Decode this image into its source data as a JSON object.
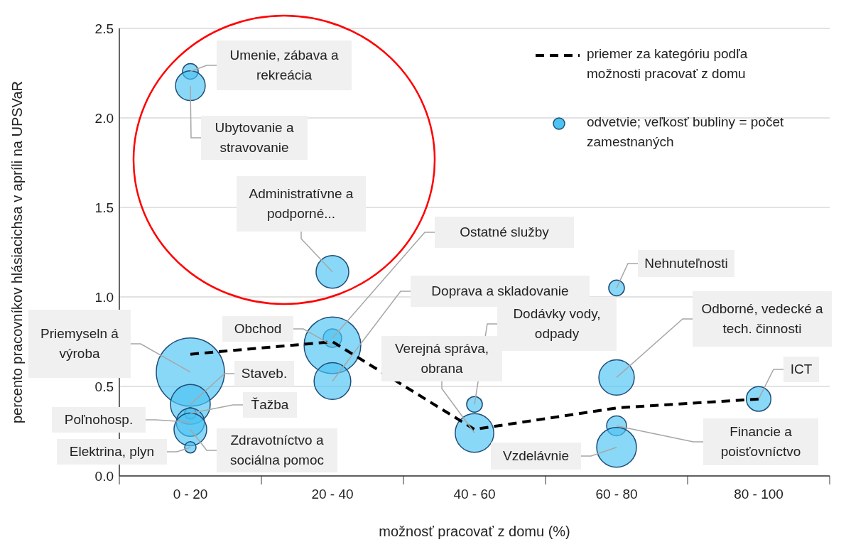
{
  "chart_data": {
    "type": "bubble",
    "xlabel": "možnosť pracovať z domu (%)",
    "ylabel": "percento pracovníkov hlásiacichsa v apríli na UPSVaR",
    "categories": [
      "0 - 20",
      "20 - 40",
      "40 - 60",
      "60 - 80",
      "80 - 100"
    ],
    "ylim": [
      0,
      2.5
    ],
    "yticks": [
      {
        "value": 0,
        "label": "0.0"
      },
      0.5,
      {
        "value": 1,
        "label": "1.0"
      },
      1.5,
      {
        "value": 2,
        "label": "2.0"
      },
      2.5
    ],
    "grid": "y",
    "legend": "top right",
    "line_style": "dashed",
    "series": [
      {
        "name": "priemer za kategóriu podľa možnosti pracovať z domu",
        "type": "line",
        "color": "#000000",
        "values": [
          0.68,
          0.75,
          0.26,
          0.38,
          0.43
        ]
      },
      {
        "name": "odvetvie; veľkosť bubliny = počet zamestnaných",
        "type": "bubble",
        "color": "#4cc3f2",
        "x": [
          "0 - 20",
          "0 - 20",
          "20 - 40",
          "20 - 40",
          "20 - 40",
          "20 - 40",
          "0 - 20",
          "0 - 20",
          "0 - 20",
          "0 - 20",
          "0 - 20",
          "0 - 20",
          "40 - 60",
          "40 - 60",
          "60 - 80",
          "60 - 80",
          "80 - 100",
          "60 - 80",
          "60 - 80"
        ],
        "values": [
          2.26,
          2.18,
          1.14,
          0.77,
          0.73,
          0.53,
          0.58,
          0.4,
          0.35,
          0.3,
          0.26,
          0.16,
          0.4,
          0.24,
          1.05,
          0.55,
          0.43,
          0.28,
          0.16
        ],
        "sizes": [
          0.053,
          0.19,
          0.23,
          0.073,
          0.69,
          0.29,
          1,
          0.34,
          0.028,
          0.17,
          0.23,
          0.028,
          0.053,
          0.32,
          0.053,
          0.27,
          0.13,
          0.085,
          0.34
        ]
      }
    ],
    "annotations": [
      {
        "text": "Umenie, zábava a rekreácia",
        "x": "0 - 20",
        "y": 2.26
      },
      {
        "text": "Ubytovanie a stravovanie",
        "x": "0 - 20",
        "y": 2.18
      },
      {
        "text": "Administratívne a podporné...",
        "x": "20 - 40",
        "y": 1.14
      },
      "Ostatné služby",
      {
        "text": "Obchod",
        "x": "20 - 40",
        "y": 0.73
      },
      "Doprava a skladovanie",
      {
        "text": "Priemyseln á výroba",
        "x": "0 - 20",
        "y": 0.58
      },
      {
        "text": "Staveb.",
        "x": "0 - 20",
        "y": 0.4
      },
      {
        "text": "Ťažba",
        "x": "0 - 20",
        "y": 0.35
      },
      {
        "text": "Poľnohosp.",
        "x": "0 - 20",
        "y": 0.3
      },
      {
        "text": "Zdravotníctvo a sociálna pomoc",
        "x": "0 - 20",
        "y": 0.26
      },
      {
        "text": "Elektrina, plyn",
        "x": "0 - 20",
        "y": 0.16
      },
      {
        "text": "Dodávky vody, odpady",
        "x": "40 - 60",
        "y": 0.4
      },
      {
        "text": "Verejná správa, obrana",
        "x": "40 - 60",
        "y": 0.24
      },
      {
        "text": "Nehnuteľnosti",
        "x": "60 - 80",
        "y": 1.05
      },
      {
        "text": "Odborné, vedecké a tech. činnosti",
        "x": "60 - 80",
        "y": 0.55
      },
      {
        "text": "ICT",
        "x": "80 - 100",
        "y": 0.43
      },
      {
        "text": "Financie a poisťovníctvo",
        "x": "60 - 80",
        "y": 0.28
      },
      {
        "text": "Vzdelávnie",
        "x": "60 - 80",
        "y": 0.16
      }
    ]
  }
}
